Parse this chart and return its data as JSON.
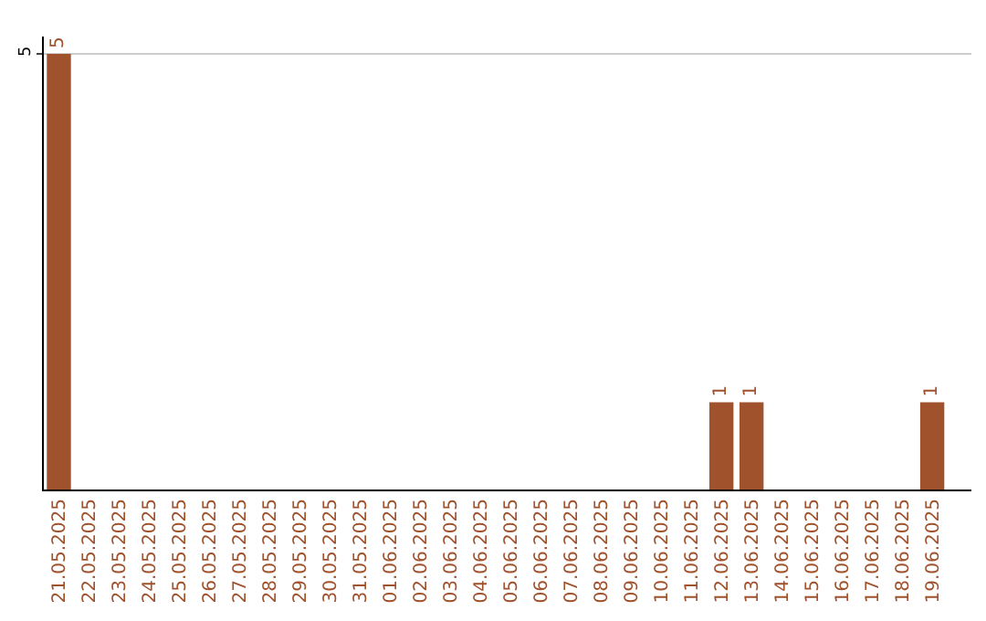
{
  "chart_data": {
    "type": "bar",
    "categories": [
      "21.05.2025",
      "22.05.2025",
      "23.05.2025",
      "24.05.2025",
      "25.05.2025",
      "26.05.2025",
      "27.05.2025",
      "28.05.2025",
      "29.05.2025",
      "30.05.2025",
      "31.05.2025",
      "01.06.2025",
      "02.06.2025",
      "03.06.2025",
      "04.06.2025",
      "05.06.2025",
      "06.06.2025",
      "07.06.2025",
      "08.06.2025",
      "09.06.2025",
      "10.06.2025",
      "11.06.2025",
      "12.06.2025",
      "13.06.2025",
      "14.06.2025",
      "15.06.2025",
      "16.06.2025",
      "17.06.2025",
      "18.06.2025",
      "19.06.2025"
    ],
    "values": [
      5,
      0,
      0,
      0,
      0,
      0,
      0,
      0,
      0,
      0,
      0,
      0,
      0,
      0,
      0,
      0,
      0,
      0,
      0,
      0,
      0,
      0,
      1,
      1,
      0,
      0,
      0,
      0,
      0,
      1
    ],
    "value_labels": [
      "5",
      null,
      null,
      null,
      null,
      null,
      null,
      null,
      null,
      null,
      null,
      null,
      null,
      null,
      null,
      null,
      null,
      null,
      null,
      null,
      null,
      null,
      "1",
      "1",
      null,
      null,
      null,
      null,
      null,
      "1"
    ],
    "color": "#a0522d",
    "ylim": [
      0,
      5.2
    ],
    "yticks": [
      5
    ],
    "grid": "y",
    "legend": false
  }
}
